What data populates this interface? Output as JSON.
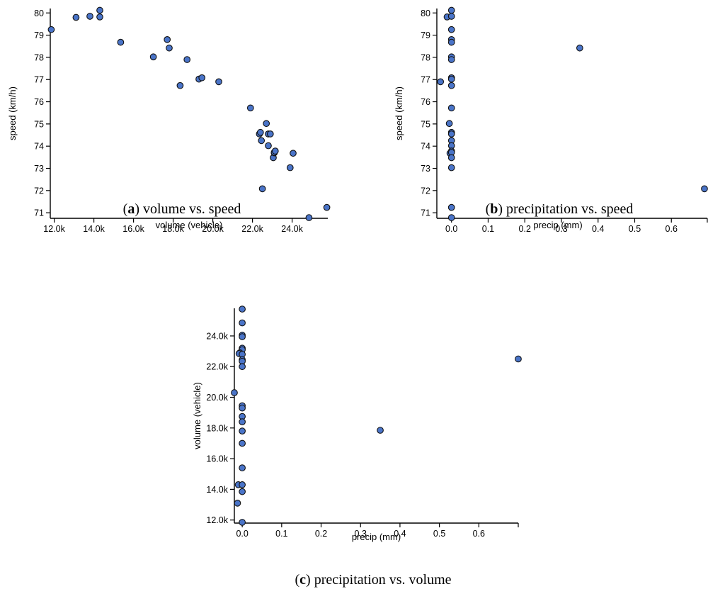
{
  "colors": {
    "point_fill": "#4a74c8",
    "point_stroke": "#111111"
  },
  "chart_data": [
    {
      "id": "a",
      "type": "scatter",
      "caption_letter": "a",
      "caption_text": "volume vs. speed",
      "xlabel": "volume (vehicle)",
      "ylabel": "speed (km/h)",
      "xlim": [
        11800,
        25800
      ],
      "ylim": [
        70.75,
        80.2
      ],
      "xticks": [
        12000,
        14000,
        16000,
        18000,
        20000,
        22000,
        24000
      ],
      "xtick_labels": [
        "12.0k",
        "14.0k",
        "16.0k",
        "18.0k",
        "20.0k",
        "22.0k",
        "24.0k"
      ],
      "yticks": [
        71,
        72,
        73,
        74,
        75,
        76,
        77,
        78,
        79,
        80
      ],
      "ytick_labels": [
        "71",
        "72",
        "73",
        "74",
        "75",
        "76",
        "77",
        "78",
        "79",
        "80"
      ],
      "points": [
        [
          11850,
          79.25
        ],
        [
          13100,
          79.8
        ],
        [
          13800,
          79.85
        ],
        [
          14300,
          79.82
        ],
        [
          14300,
          80.12
        ],
        [
          15350,
          78.68
        ],
        [
          17000,
          78.02
        ],
        [
          17700,
          78.8
        ],
        [
          17800,
          78.42
        ],
        [
          18350,
          76.73
        ],
        [
          18700,
          77.9
        ],
        [
          19300,
          77.02
        ],
        [
          19450,
          77.08
        ],
        [
          20300,
          76.9
        ],
        [
          21900,
          75.72
        ],
        [
          22350,
          74.55
        ],
        [
          22400,
          74.62
        ],
        [
          22450,
          74.25
        ],
        [
          22500,
          72.08
        ],
        [
          22700,
          75.02
        ],
        [
          22800,
          74.55
        ],
        [
          22800,
          74.02
        ],
        [
          22900,
          74.55
        ],
        [
          23050,
          73.48
        ],
        [
          23100,
          73.7
        ],
        [
          23100,
          73.72
        ],
        [
          23150,
          73.78
        ],
        [
          23900,
          73.03
        ],
        [
          24050,
          73.68
        ],
        [
          24850,
          70.78
        ],
        [
          25750,
          71.24
        ]
      ]
    },
    {
      "id": "b",
      "type": "scatter",
      "caption_letter": "b",
      "caption_text": "precipitation vs. speed",
      "xlabel": "precip (mm)",
      "ylabel": "speed (km/h)",
      "xlim": [
        -0.04,
        0.7
      ],
      "ylim": [
        70.75,
        80.2
      ],
      "xticks": [
        0,
        0.1,
        0.2,
        0.3,
        0.4,
        0.5,
        0.6
      ],
      "xtick_labels": [
        "0.0",
        "0.1",
        "0.2",
        "0.3",
        "0.4",
        "0.5",
        "0.6"
      ],
      "yticks": [
        71,
        72,
        73,
        74,
        75,
        76,
        77,
        78,
        79,
        80
      ],
      "ytick_labels": [
        "71",
        "72",
        "73",
        "74",
        "75",
        "76",
        "77",
        "78",
        "79",
        "80"
      ],
      "points": [
        [
          -0.012,
          79.82
        ],
        [
          0.0,
          80.12
        ],
        [
          0.0,
          79.85
        ],
        [
          0.0,
          79.25
        ],
        [
          0.0,
          78.8
        ],
        [
          0.0,
          78.68
        ],
        [
          0.0,
          78.02
        ],
        [
          0.0,
          77.9
        ],
        [
          0.0,
          77.08
        ],
        [
          0.0,
          77.02
        ],
        [
          -0.03,
          76.9
        ],
        [
          0.0,
          76.73
        ],
        [
          0.0,
          75.72
        ],
        [
          -0.006,
          75.02
        ],
        [
          0.0,
          74.62
        ],
        [
          0.0,
          74.55
        ],
        [
          0.0,
          74.25
        ],
        [
          0.0,
          74.02
        ],
        [
          0.0,
          73.78
        ],
        [
          -0.004,
          73.68
        ],
        [
          0.0,
          73.72
        ],
        [
          0.0,
          73.48
        ],
        [
          0.0,
          73.03
        ],
        [
          0.0,
          71.24
        ],
        [
          0.0,
          70.78
        ],
        [
          0.35,
          78.42
        ],
        [
          0.7,
          72.08
        ]
      ]
    },
    {
      "id": "c",
      "type": "scatter",
      "caption_letter": "c",
      "caption_text": "precipitation vs. volume",
      "xlabel": "precip (mm)",
      "ylabel": "volume (vehicle)",
      "xlim": [
        -0.02,
        0.7
      ],
      "ylim": [
        11800,
        25800
      ],
      "xticks": [
        0,
        0.1,
        0.2,
        0.3,
        0.4,
        0.5,
        0.6
      ],
      "xtick_labels": [
        "0.0",
        "0.1",
        "0.2",
        "0.3",
        "0.4",
        "0.5",
        "0.6"
      ],
      "yticks": [
        12000,
        14000,
        16000,
        18000,
        20000,
        22000,
        24000
      ],
      "ytick_labels": [
        "12.0k",
        "14.0k",
        "16.0k",
        "18.0k",
        "20.0k",
        "22.0k",
        "24.0k"
      ],
      "points": [
        [
          0.0,
          25750
        ],
        [
          0.0,
          24850
        ],
        [
          0.0,
          24050
        ],
        [
          0.0,
          23950
        ],
        [
          0.0,
          23200
        ],
        [
          0.0,
          23100
        ],
        [
          -0.006,
          22900
        ],
        [
          -0.008,
          22850
        ],
        [
          0.0,
          22800
        ],
        [
          0.0,
          22450
        ],
        [
          0.0,
          22350
        ],
        [
          0.0,
          22000
        ],
        [
          -0.02,
          20300
        ],
        [
          0.0,
          19450
        ],
        [
          0.0,
          19300
        ],
        [
          0.0,
          18750
        ],
        [
          0.0,
          18400
        ],
        [
          0.0,
          17800
        ],
        [
          0.0,
          17000
        ],
        [
          0.0,
          15400
        ],
        [
          -0.01,
          14300
        ],
        [
          0.0,
          14300
        ],
        [
          0.0,
          13850
        ],
        [
          -0.012,
          13100
        ],
        [
          0.0,
          11850
        ],
        [
          0.35,
          17850
        ],
        [
          0.7,
          22500
        ]
      ]
    }
  ]
}
